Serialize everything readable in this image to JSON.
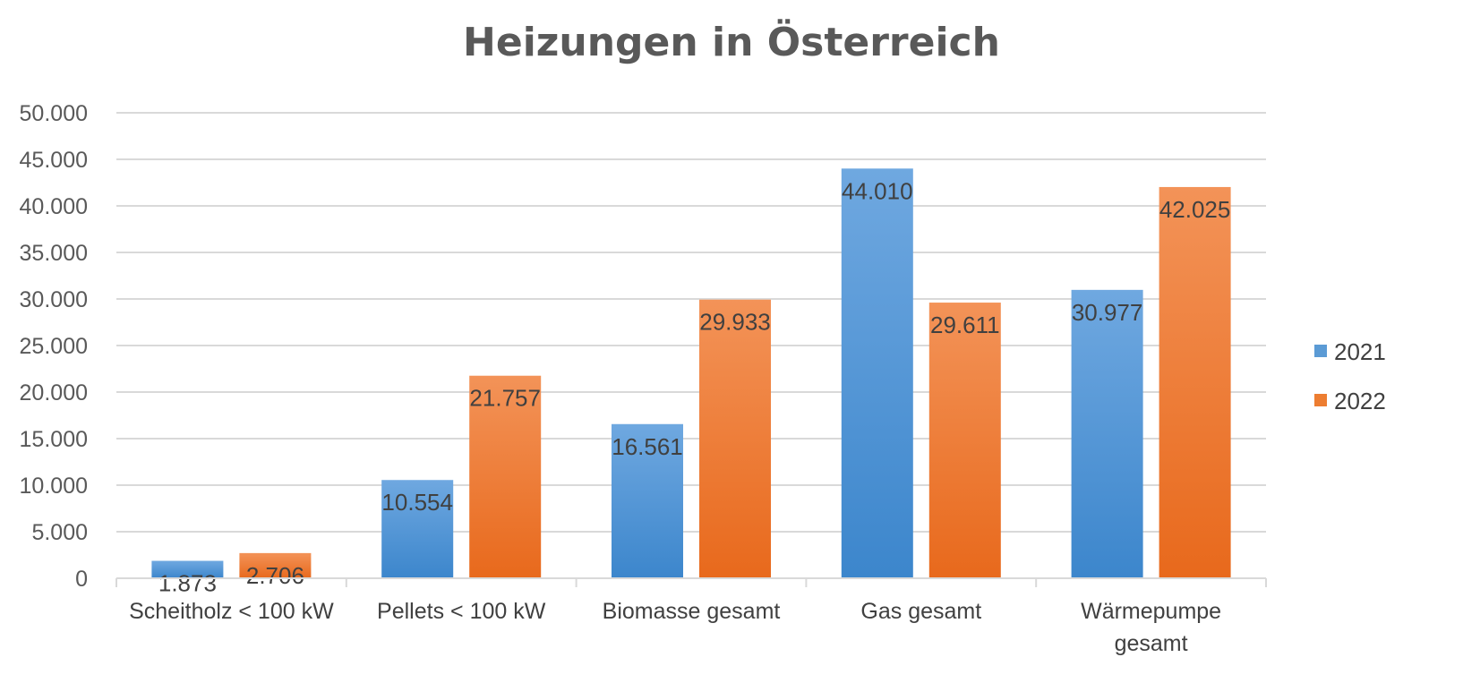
{
  "chart_data": {
    "type": "bar",
    "title": "Heizungen in Österreich",
    "categories": [
      [
        "Scheitholz < 100 kW"
      ],
      [
        "Pellets < 100 kW"
      ],
      [
        "Biomasse gesamt"
      ],
      [
        "Gas gesamt"
      ],
      [
        "Wärmepumpe",
        "gesamt"
      ]
    ],
    "series": [
      {
        "name": "2021",
        "color": "#4a90d9",
        "values": [
          1873,
          10554,
          16561,
          44010,
          30977
        ],
        "labels": [
          "1.873",
          "10.554",
          "16.561",
          "44.010",
          "30.977"
        ]
      },
      {
        "name": "2022",
        "color": "#ee7a2e",
        "values": [
          2706,
          21757,
          29933,
          29611,
          42025
        ],
        "labels": [
          "2.706",
          "21.757",
          "29.933",
          "29.611",
          "42.025"
        ]
      }
    ],
    "ylim": [
      0,
      50000
    ],
    "yticks": [
      {
        "value": 0,
        "label": "0"
      },
      {
        "value": 5000,
        "label": "5.000"
      },
      {
        "value": 10000,
        "label": "10.000"
      },
      {
        "value": 15000,
        "label": "15.000"
      },
      {
        "value": 20000,
        "label": "20.000"
      },
      {
        "value": 25000,
        "label": "25.000"
      },
      {
        "value": 30000,
        "label": "30.000"
      },
      {
        "value": 35000,
        "label": "35.000"
      },
      {
        "value": 40000,
        "label": "40.000"
      },
      {
        "value": 45000,
        "label": "45.000"
      },
      {
        "value": 50000,
        "label": "50.000"
      }
    ],
    "grid": true,
    "legend": "right"
  }
}
